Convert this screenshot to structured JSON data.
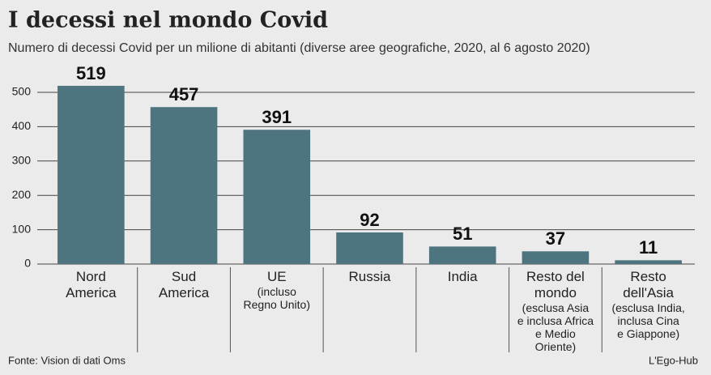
{
  "chart_data": {
    "type": "bar",
    "title": "I decessi nel mondo Covid",
    "subtitle": "Numero di decessi Covid per un milione di abitanti (diverse aree geografiche, 2020, al 6 agosto 2020)",
    "categories": [
      "Nord\nAmerica",
      "Sud\nAmerica",
      "UE",
      "Russia",
      "India",
      "Resto del\nmondo",
      "Resto\ndell'Asia"
    ],
    "category_notes": [
      null,
      null,
      "(incluso\nRegno Unito)",
      null,
      null,
      "(esclusa Asia\ne inclusa Africa\ne Medio\nOriente)",
      "(esclusa India,\ninclusa Cina\ne Giappone)"
    ],
    "values": [
      519,
      457,
      391,
      92,
      51,
      37,
      11
    ],
    "color": "#4e7480",
    "ylim": [
      0,
      500
    ],
    "yticks": [
      0,
      100,
      200,
      300,
      400,
      500
    ],
    "grid": true,
    "source": "Fonte: Vision di dati Oms",
    "credit": "L'Ego-Hub"
  }
}
